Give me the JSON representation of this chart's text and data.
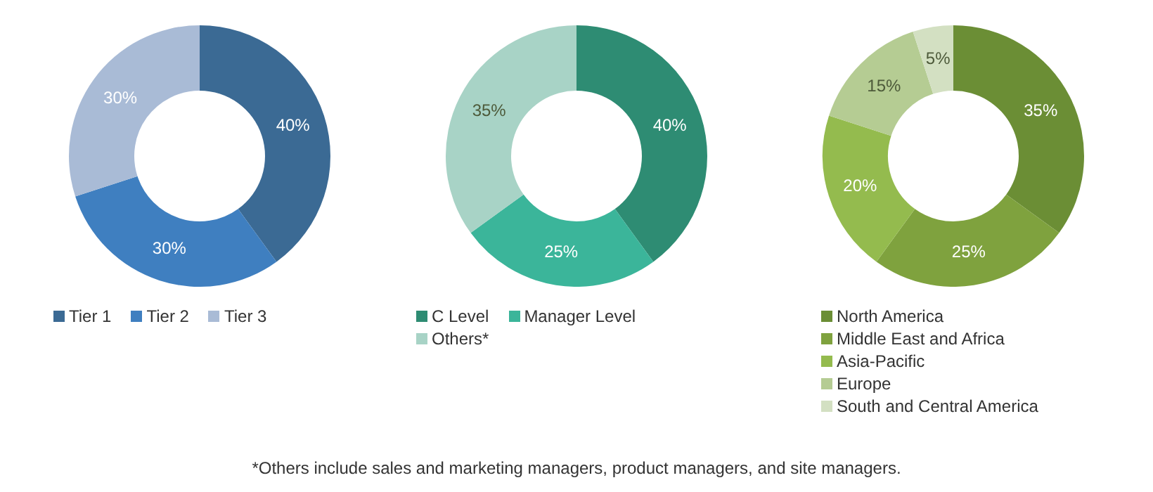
{
  "chart_data": [
    {
      "type": "donut",
      "categories": [
        "Tier 1",
        "Tier 2",
        "Tier 3"
      ],
      "values": [
        40,
        30,
        30
      ],
      "colors": [
        "#3b6a94",
        "#3f7fc0",
        "#a9bbd6"
      ],
      "value_labels": [
        "40%",
        "30%",
        "30%"
      ],
      "legend": "bottom"
    },
    {
      "type": "donut",
      "categories": [
        "C Level",
        "Manager Level",
        "Others*"
      ],
      "values": [
        40,
        25,
        35
      ],
      "colors": [
        "#2e8c73",
        "#3bb59a",
        "#a8d3c6"
      ],
      "value_labels": [
        "40%",
        "25%",
        "35%"
      ],
      "legend": "bottom",
      "annotations": [
        "*Others include sales and marketing managers, product managers, and site managers."
      ]
    },
    {
      "type": "donut",
      "categories": [
        "North America",
        "Middle East and Africa",
        "Asia-Pacific",
        "Europe",
        "South and Central America"
      ],
      "values": [
        35,
        25,
        20,
        15,
        5
      ],
      "colors": [
        "#6b8e35",
        "#7fa23e",
        "#94bb4e",
        "#b5cc93",
        "#d3e0c2"
      ],
      "value_labels": [
        "35%",
        "25%",
        "20%",
        "15%",
        "5%"
      ],
      "legend": "bottom"
    }
  ]
}
